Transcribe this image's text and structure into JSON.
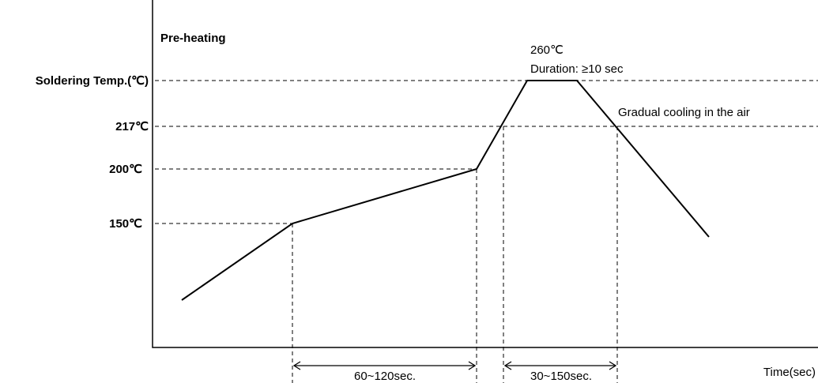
{
  "diagram": {
    "title": "Pre-heating",
    "peak_temp": "260℃",
    "duration": "Duration:  ≥10 sec",
    "cooling": "Gradual cooling in the air",
    "x_axis_label": "Time(sec)",
    "y_labels": {
      "soldering": "Soldering Temp.(℃)",
      "t217": "217℃",
      "t200": "200℃",
      "t150": "150℃"
    },
    "intervals": {
      "preheat_time": "60~120sec.",
      "above_217_time": "30~150sec."
    }
  }
}
